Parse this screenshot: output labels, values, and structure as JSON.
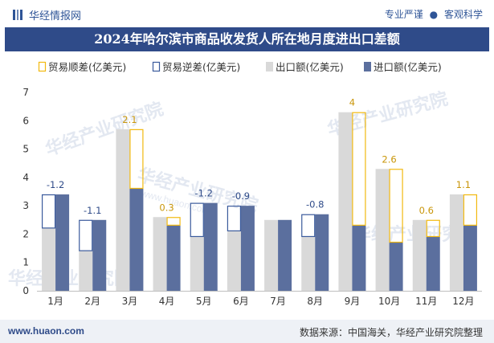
{
  "header": {
    "brand": "华经情报网",
    "tagline_left": "专业严谨",
    "tagline_dot": "●",
    "tagline_right": "客观科学"
  },
  "footer": {
    "website": "www.huaon.com",
    "source": "数据来源：中国海关，华经产业研究院整理"
  },
  "chart_data": {
    "type": "bar",
    "title": "2024年哈尔滨市商品收发货人所在地月度进出口差额",
    "categories": [
      "1月",
      "2月",
      "3月",
      "4月",
      "5月",
      "6月",
      "7月",
      "8月",
      "9月",
      "10月",
      "11月",
      "12月"
    ],
    "ylim": [
      0,
      7
    ],
    "yticks": [
      0,
      1,
      2,
      3,
      4,
      5,
      6,
      7
    ],
    "series": [
      {
        "name": "出口额(亿美元)",
        "values": [
          2.2,
          1.4,
          5.7,
          2.6,
          1.9,
          2.1,
          2.5,
          1.9,
          6.3,
          4.3,
          2.5,
          3.4
        ]
      },
      {
        "name": "进口额(亿美元)",
        "values": [
          3.4,
          2.5,
          3.6,
          2.3,
          3.1,
          3.0,
          2.5,
          2.7,
          2.3,
          1.7,
          1.9,
          2.3
        ]
      }
    ],
    "balance": [
      -1.2,
      -1.1,
      2.1,
      0.3,
      -1.2,
      -0.9,
      null,
      -0.8,
      4,
      2.6,
      0.6,
      1.1
    ],
    "balance_labels": [
      "-1.2",
      "-1.1",
      "2.1",
      "0.3",
      "-1.2",
      "-0.9",
      "",
      "-0.8",
      "4",
      "2.6",
      "0.6",
      "1.1"
    ],
    "legend": {
      "placement": "top",
      "items": [
        {
          "name": "贸易顺差(亿美元)",
          "style": "outline",
          "color": "#f2b90f"
        },
        {
          "name": "贸易逆差(亿美元)",
          "style": "outline",
          "color": "#3a5a9c"
        },
        {
          "name": "出口额(亿美元)",
          "style": "fill",
          "color": "#d9d9d9"
        },
        {
          "name": "进口额(亿美元)",
          "style": "fill",
          "color": "#5b6f9e"
        }
      ]
    },
    "colors": {
      "surplus": "#f2b90f",
      "deficit": "#3a5a9c",
      "export": "#d9d9d9",
      "import": "#5b6f9e",
      "surplus_label": "#c9960a",
      "deficit_label": "#2f4b89"
    },
    "watermark": "华经产业研究院",
    "watermark_url": "www.huaon.com"
  }
}
